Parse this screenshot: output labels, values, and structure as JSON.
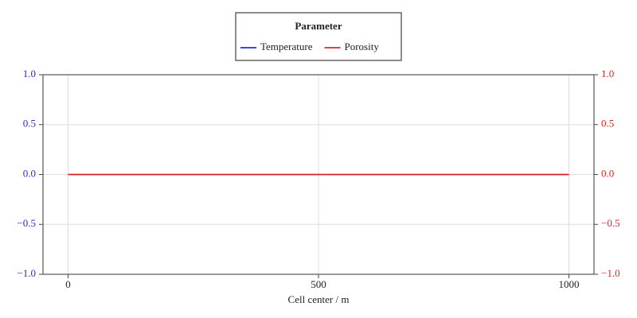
{
  "chart_data": {
    "type": "line",
    "legend_title": "Parameter",
    "xlabel": "Cell center / m",
    "x": [
      0,
      1000
    ],
    "series": [
      {
        "name": "Temperature",
        "color": "#2a2ad4",
        "values": [
          0,
          0
        ]
      },
      {
        "name": "Porosity",
        "color": "#e02424",
        "values": [
          0,
          0
        ],
        "axis": "y2"
      }
    ],
    "xlim": [
      -50,
      1050
    ],
    "xticks": [
      0,
      500,
      1000
    ],
    "ylim": [
      -1,
      1
    ],
    "yticks": [
      {
        "value": -1,
        "label": "−1.0"
      },
      {
        "value": -0.5,
        "label": "−0.5"
      },
      {
        "value": 0,
        "label": "0.0"
      },
      0.5,
      {
        "value": 1,
        "label": "1.0"
      }
    ],
    "y2lim": [
      -1,
      1
    ],
    "y2ticks": [
      {
        "value": -1,
        "label": "−1.0"
      },
      {
        "value": -0.5,
        "label": "−0.5"
      },
      {
        "value": 0,
        "label": "0.0"
      },
      0.5,
      {
        "value": 1,
        "label": "1.0"
      }
    ],
    "grid": true,
    "legend": "top"
  }
}
